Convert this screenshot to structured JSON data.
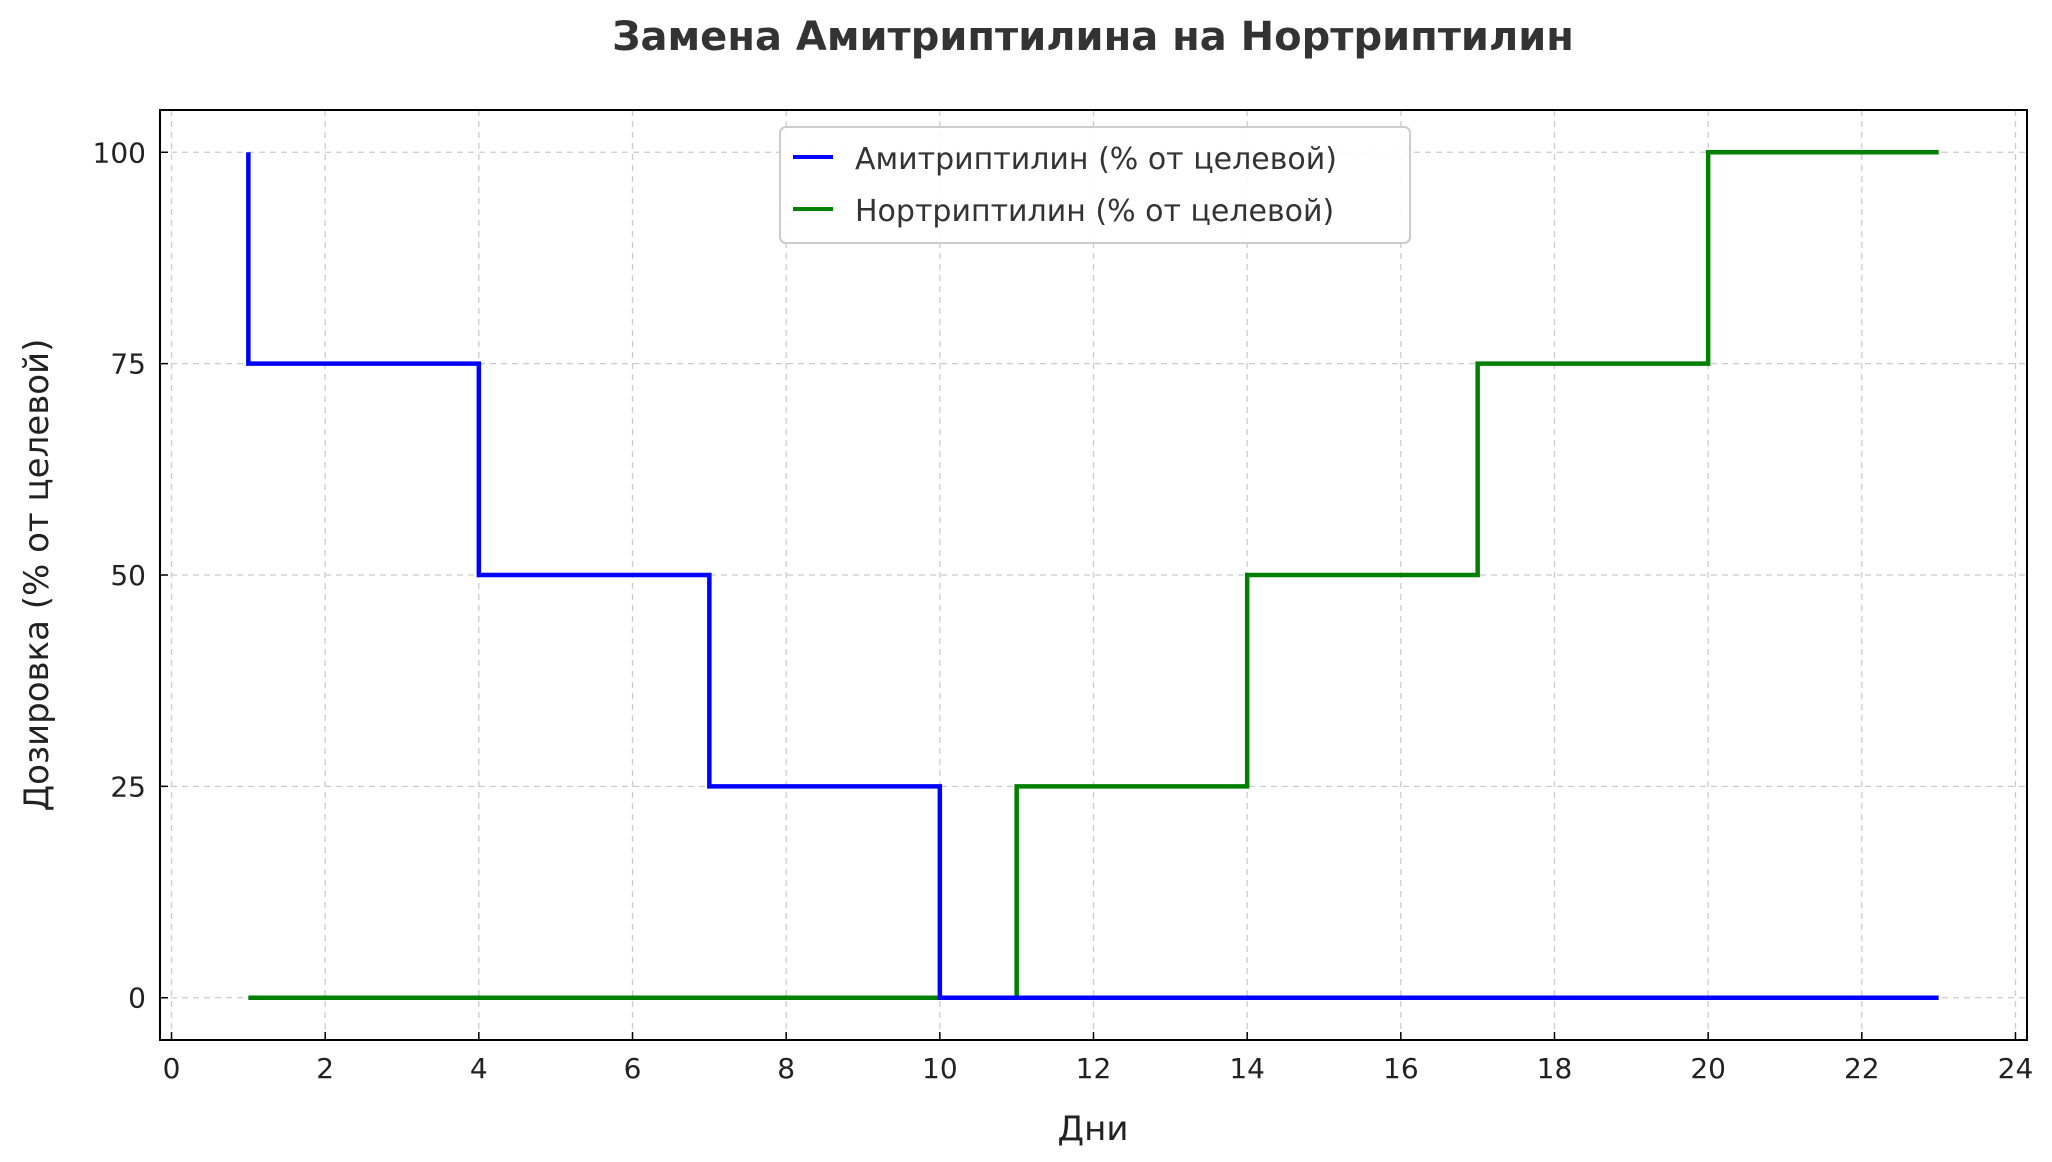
{
  "chart_data": {
    "type": "line",
    "step": "post",
    "title": "Замена Амитриптилина на Нортриптилин",
    "xlabel": "Дни",
    "ylabel": "Дозировка (% от целевой)",
    "xlim": [
      -0.15,
      24.15
    ],
    "ylim": [
      -5,
      105
    ],
    "xticks": [
      "0",
      "2",
      "4",
      "6",
      "8",
      "10",
      "12",
      "14",
      "16",
      "18",
      "20",
      "22",
      "24"
    ],
    "yticks": [
      "0",
      "25",
      "50",
      "75",
      "100"
    ],
    "grid": true,
    "legend_position": "top-center",
    "series": [
      {
        "name": "Амитриптилин (% от целевой)",
        "color": "#0000ff",
        "x": [
          1,
          1,
          4,
          7,
          10,
          11,
          23
        ],
        "y": [
          100,
          75,
          50,
          25,
          0,
          0,
          0
        ]
      },
      {
        "name": "Нортриптилин (% от целевой)",
        "color": "#008000",
        "x": [
          1,
          11,
          14,
          17,
          20,
          23
        ],
        "y": [
          0,
          25,
          50,
          75,
          100,
          100
        ]
      }
    ]
  }
}
